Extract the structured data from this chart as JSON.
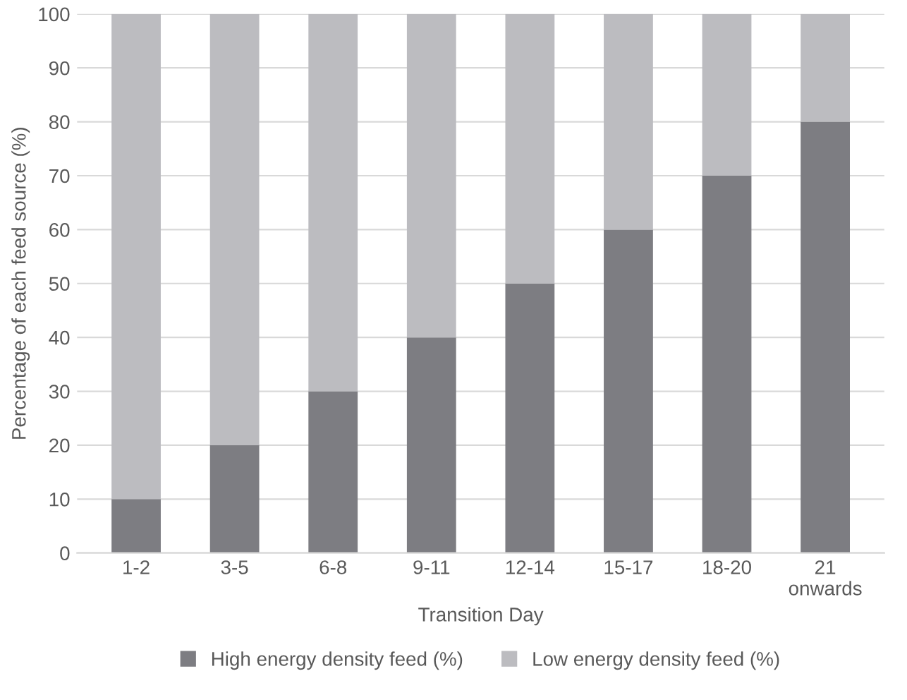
{
  "chart_data": {
    "type": "bar",
    "stacked": true,
    "xlabel": "Transition Day",
    "ylabel": "Percentage of each feed source (%)",
    "categories": [
      "1-2",
      "3-5",
      "6-8",
      "9-11",
      "12-14",
      "15-17",
      "18-20",
      "21 onwards"
    ],
    "series": [
      {
        "name": "High energy density feed (%)",
        "color": "#7d7d82",
        "values": [
          10,
          20,
          30,
          40,
          50,
          60,
          70,
          80
        ]
      },
      {
        "name": "Low energy density feed (%)",
        "color": "#bcbcc0",
        "values": [
          90,
          80,
          70,
          60,
          50,
          40,
          30,
          20
        ]
      }
    ],
    "ylim": [
      0,
      100
    ],
    "yticks": [
      0,
      10,
      20,
      30,
      40,
      50,
      60,
      70,
      80,
      90,
      100
    ],
    "grid": "y",
    "legend": "bottom"
  }
}
